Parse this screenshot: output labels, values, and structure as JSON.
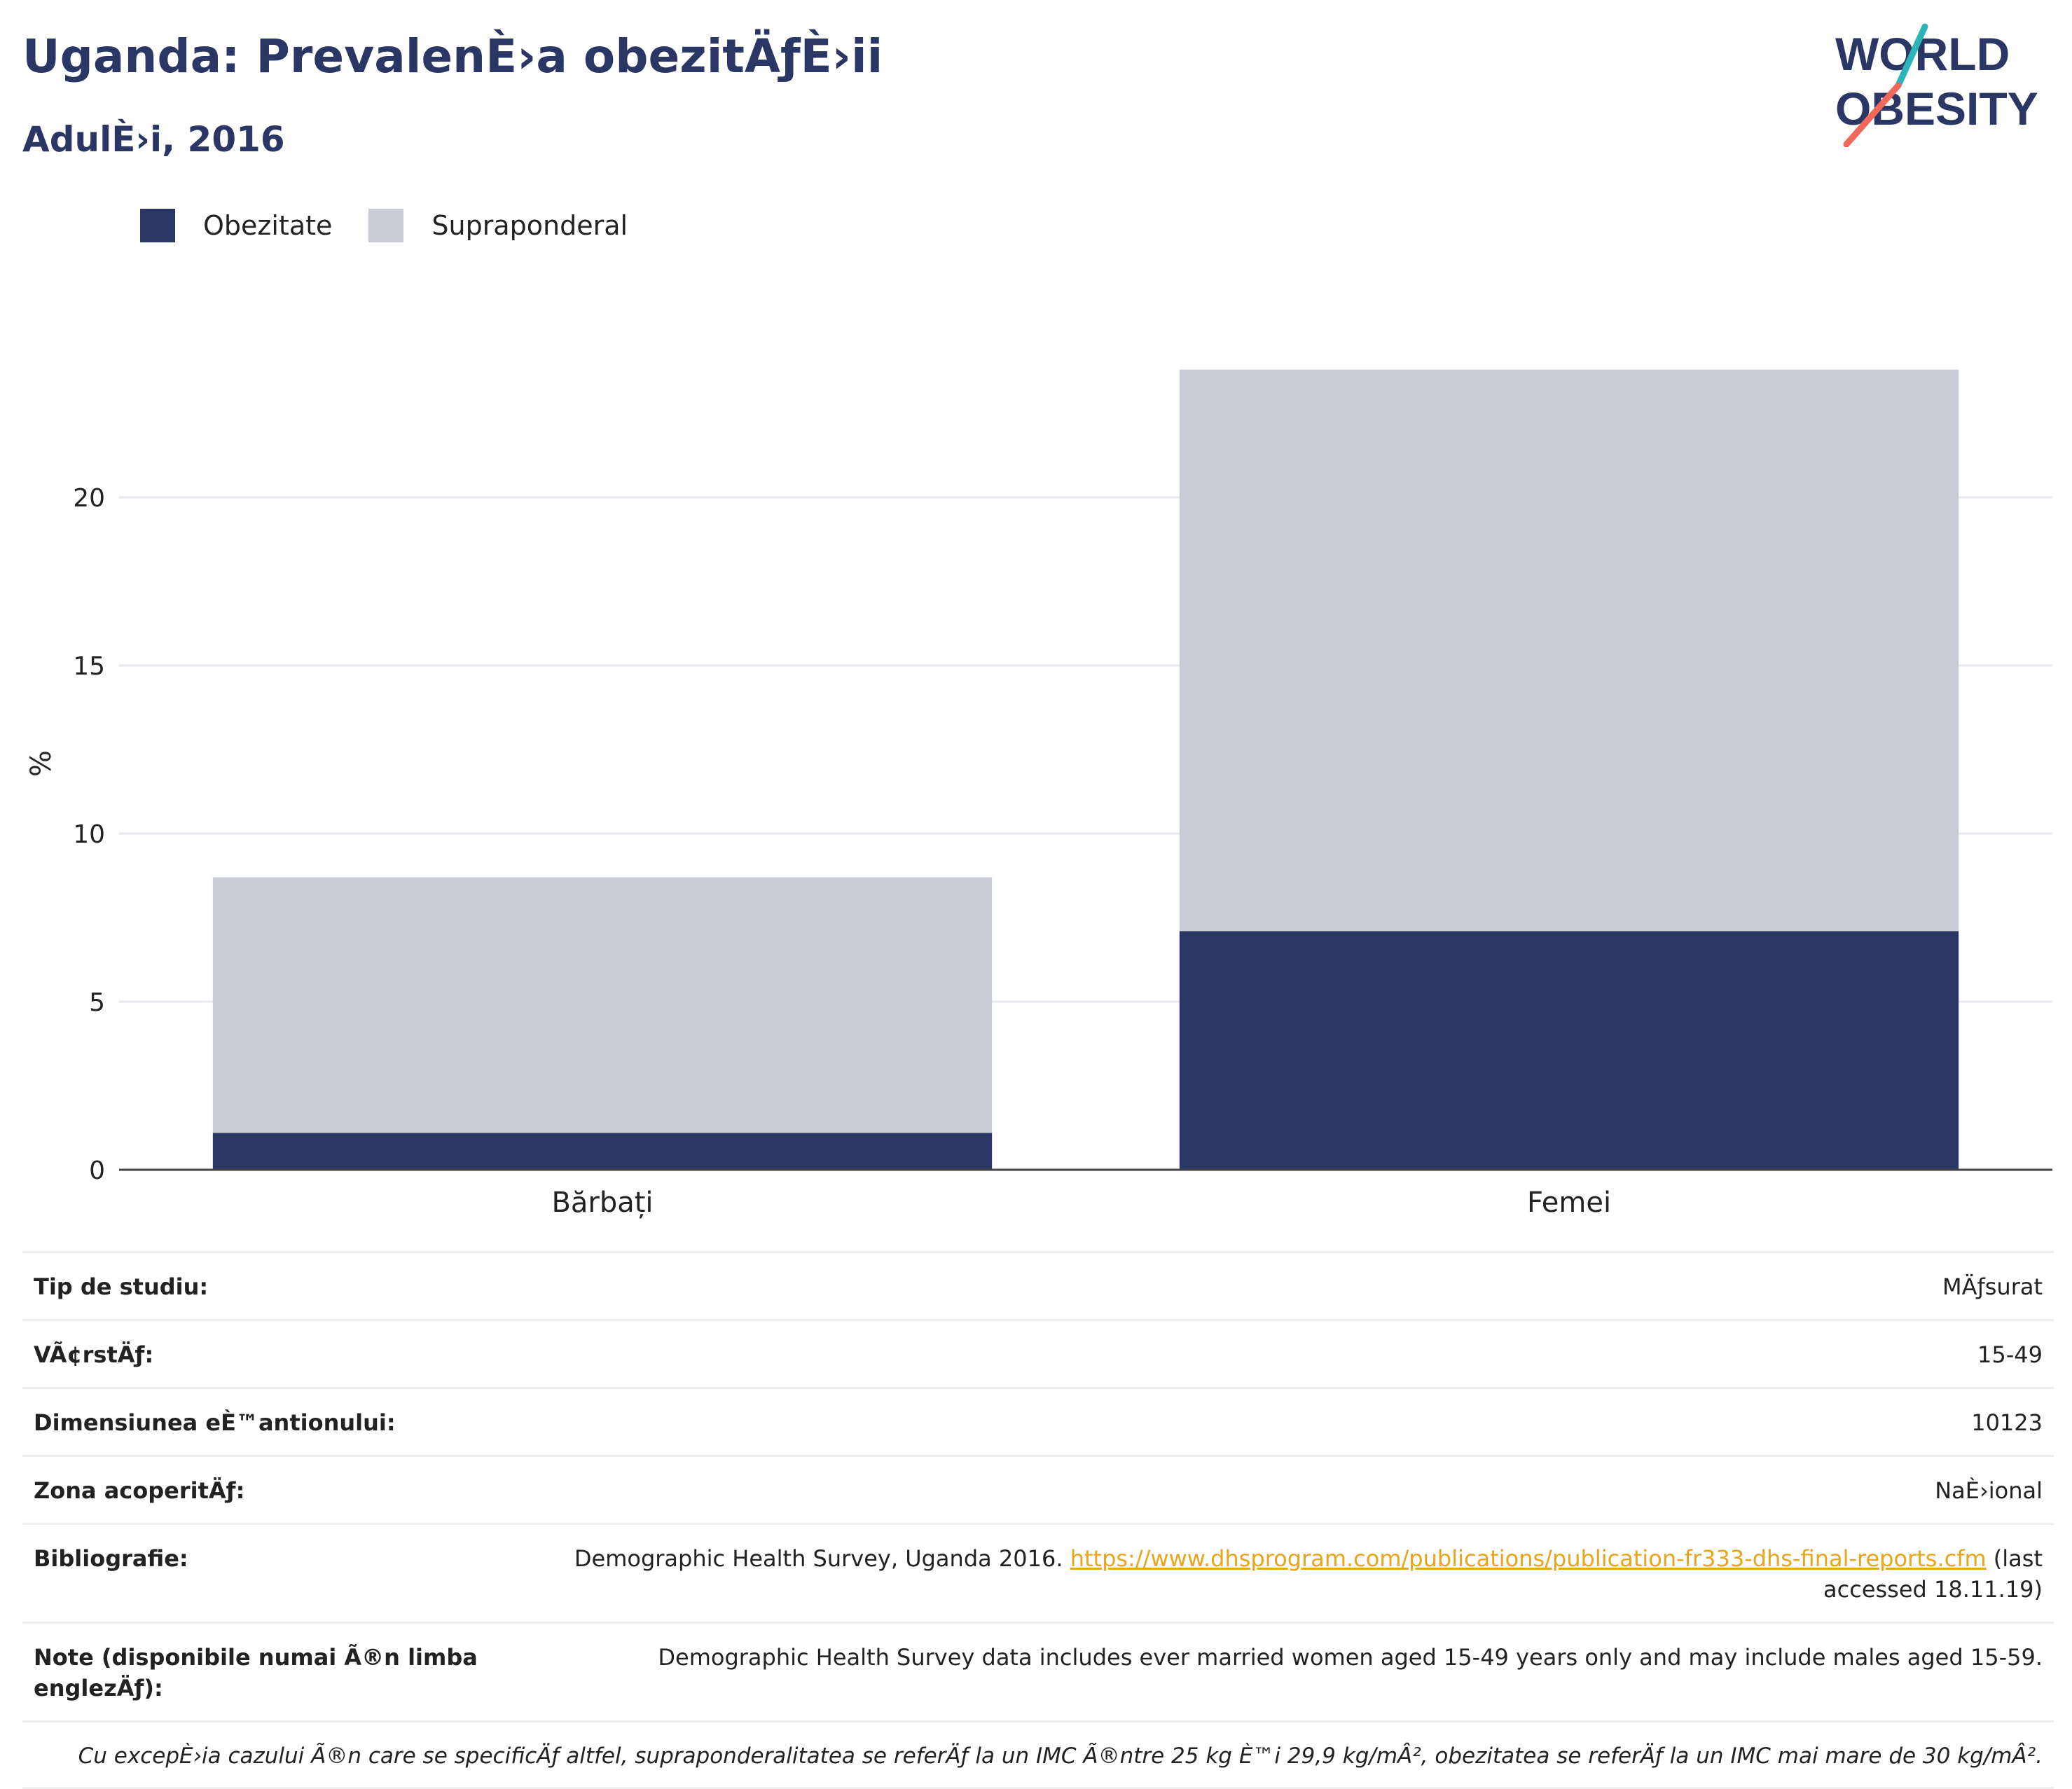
{
  "header": {
    "title": "Uganda: PrevalenÈ›a obezitÄƒÈ›ii",
    "subtitle": "AdulÈ›i, 2016"
  },
  "logo": {
    "line1": "WORLD",
    "line2": "OBESITY",
    "colors": {
      "text": "#2a3663",
      "slash_teal": "#2bb5b8",
      "slash_coral": "#f0685a"
    }
  },
  "colors": {
    "obesity": "#2a3663",
    "overweight": "#c9cbd6",
    "axis": "#444444",
    "grid": "#e8e8ee"
  },
  "chart_data": {
    "type": "bar",
    "stacked": true,
    "categories": [
      "Bărbați",
      "Femei"
    ],
    "series": [
      {
        "name": "Obezitate",
        "color": "#2a3663",
        "values": [
          1.1,
          7.1
        ]
      },
      {
        "name": "Supraponderal",
        "color": "#c9cbd6",
        "values": [
          7.6,
          16.7
        ]
      }
    ],
    "ylabel": "%",
    "ylim": [
      0,
      25
    ],
    "yticks": [
      0,
      5,
      10,
      15,
      20
    ],
    "grid": true,
    "legend_position": "top-left"
  },
  "info": {
    "rows": [
      {
        "label": "Tip de studiu:",
        "value": "MÄƒsurat"
      },
      {
        "label": "VÃ¢rstÄƒ:",
        "value": "15-49"
      },
      {
        "label": "Dimensiunea eÈ™antionului:",
        "value": "10123"
      },
      {
        "label": "Zona acoperitÄƒ:",
        "value": "NaÈ›ional"
      }
    ],
    "bibliography": {
      "label": "Bibliografie:",
      "text_before": "Demographic Health Survey, Uganda 2016.",
      "link": "https://www.dhsprogram.com/publications/publication-fr333-dhs-final-reports.cfm",
      "text_after": "(last accessed 18.11.19)"
    },
    "notes": {
      "label": "Note (disponibile numai Ã®n limba englezÄƒ):",
      "value": "Demographic Health Survey data includes ever married women aged 15-49 years only and may include males aged 15-59."
    },
    "footnote": "Cu excepÈ›ia cazului Ã®n care se specificÄƒ altfel, supraponderalitatea se referÄƒ la un IMC Ã®ntre 25 kg È™i 29,9 kg/mÂ², obezitatea se referÄƒ la un IMC mai mare de 30 kg/mÂ²."
  }
}
